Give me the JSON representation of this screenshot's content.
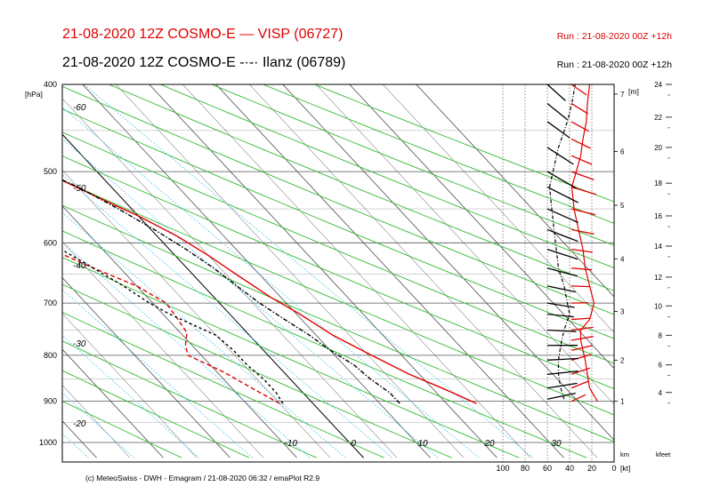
{
  "header": {
    "line1_left": "21-08-2020 12Z COSMO-E  —  VISP (06727)",
    "line1_right": "Run : 21-08-2020 00Z +12h",
    "line2_left": "21-08-2020 12Z COSMO-E  -·-·  Ilanz (06789)",
    "line2_right": "Run : 21-08-2020 00Z +12h"
  },
  "footer": {
    "credit": "(c) MeteoSwiss - DWH - Emagram / 21-08-2020  06:32 / emaPlot R2.9"
  },
  "colors": {
    "visp": "#e00000",
    "ilanz": "#000000",
    "dry_adiabat": "#33bb33",
    "mixing_ratio": "#55ccee",
    "isotherm": "#000000"
  },
  "chart_data": {
    "type": "line",
    "subtype": "emagram",
    "pressure_axis": {
      "unit_label": "[hPa]",
      "ticks": [
        400,
        500,
        600,
        700,
        800,
        900,
        1000
      ],
      "range": [
        400,
        1040
      ],
      "scale": "log"
    },
    "temperature_axis": {
      "unit": "°C",
      "range_at_bottom": [
        -43,
        38
      ],
      "skew": true
    },
    "isotherm_labels_top": [
      "-60",
      "-50",
      "-40",
      "-30",
      "-20"
    ],
    "isotherm_labels_left": [
      "-60",
      "-50",
      "-40",
      "-30",
      "-20"
    ],
    "isotherm_labels_bottom": [
      "-10",
      "0",
      "10",
      "20",
      "30"
    ],
    "wind_axis": {
      "unit_label": "[kt]",
      "ticks": [
        "100",
        "80",
        "60",
        "40",
        "20",
        "0"
      ]
    },
    "height_km": {
      "label": "[m]",
      "heading": "km",
      "ticks": [
        "1",
        "2",
        "3",
        "4",
        "5",
        "6",
        "7"
      ],
      "pressures": [
        900,
        810,
        715,
        625,
        545,
        475,
        410
      ]
    },
    "height_kfeet": {
      "heading": "kfeet",
      "ticks": [
        "4",
        "6",
        "8",
        "10",
        "12",
        "14",
        "16",
        "18",
        "20",
        "22",
        "24"
      ],
      "pressures": [
        880,
        820,
        760,
        705,
        655,
        605,
        560,
        515,
        470,
        435,
        400
      ]
    },
    "series": [
      {
        "name": "VISP (06727)",
        "color": "#e00000",
        "style": "solid",
        "temperature": [
          [
            905,
            24.5
          ],
          [
            870,
            21.5
          ],
          [
            840,
            18.5
          ],
          [
            800,
            15.5
          ],
          [
            760,
            12.5
          ],
          [
            720,
            10.5
          ],
          [
            690,
            8.5
          ],
          [
            650,
            6.5
          ],
          [
            620,
            5
          ],
          [
            590,
            3
          ],
          [
            560,
            0
          ],
          [
            530,
            -4
          ],
          [
            500,
            -8
          ],
          [
            470,
            -12
          ],
          [
            445,
            -15.5
          ],
          [
            420,
            -19
          ],
          [
            400,
            -22
          ]
        ],
        "dewpoint": [
          [
            905,
            -5
          ],
          [
            870,
            -7
          ],
          [
            835,
            -9
          ],
          [
            800,
            -12
          ],
          [
            780,
            -11
          ],
          [
            755,
            -9
          ],
          [
            730,
            -8.5
          ],
          [
            700,
            -8
          ],
          [
            670,
            -10
          ],
          [
            640,
            -14
          ],
          [
            600,
            -19
          ],
          [
            560,
            -24
          ],
          [
            520,
            -29
          ],
          [
            500,
            -31
          ],
          [
            470,
            -35
          ],
          [
            445,
            -36
          ],
          [
            425,
            -37
          ],
          [
            400,
            -39
          ]
        ],
        "wind_speed_kt": [
          [
            900,
            15
          ],
          [
            870,
            22
          ],
          [
            840,
            24
          ],
          [
            810,
            26
          ],
          [
            790,
            28
          ],
          [
            770,
            30
          ],
          [
            750,
            30
          ],
          [
            730,
            22
          ],
          [
            700,
            18
          ],
          [
            670,
            22
          ],
          [
            640,
            26
          ],
          [
            610,
            28
          ],
          [
            580,
            32
          ],
          [
            550,
            36
          ],
          [
            520,
            38
          ],
          [
            500,
            34
          ],
          [
            480,
            30
          ],
          [
            460,
            28
          ],
          [
            440,
            25
          ],
          [
            420,
            24
          ],
          [
            400,
            22
          ]
        ]
      },
      {
        "name": "Ilanz (06789)",
        "color": "#000000",
        "style": "dash-dot",
        "temperature": [
          [
            905,
            13
          ],
          [
            880,
            13
          ],
          [
            850,
            12
          ],
          [
            820,
            11.5
          ],
          [
            790,
            10
          ],
          [
            760,
            9
          ],
          [
            730,
            7.5
          ],
          [
            700,
            6
          ],
          [
            670,
            5
          ],
          [
            640,
            4
          ],
          [
            610,
            2.5
          ],
          [
            580,
            0.5
          ],
          [
            550,
            -2
          ],
          [
            520,
            -5
          ],
          [
            500,
            -8
          ],
          [
            480,
            -10
          ],
          [
            460,
            -12.5
          ],
          [
            440,
            -15
          ],
          [
            420,
            -18
          ],
          [
            400,
            -21
          ]
        ],
        "dewpoint": [
          [
            905,
            -4.5
          ],
          [
            880,
            -4
          ],
          [
            850,
            -4
          ],
          [
            820,
            -4.5
          ],
          [
            790,
            -4.5
          ],
          [
            760,
            -5
          ],
          [
            740,
            -7
          ],
          [
            720,
            -9
          ],
          [
            700,
            -10.5
          ],
          [
            670,
            -12
          ],
          [
            640,
            -14
          ],
          [
            600,
            -17
          ],
          [
            560,
            -21
          ],
          [
            530,
            -24
          ],
          [
            500,
            -27
          ],
          [
            470,
            -29
          ],
          [
            445,
            -30
          ],
          [
            425,
            -31
          ],
          [
            400,
            -34
          ]
        ],
        "wind_speed_kt": [
          [
            895,
            45
          ],
          [
            870,
            48
          ],
          [
            840,
            50
          ],
          [
            810,
            50
          ],
          [
            780,
            48
          ],
          [
            750,
            45
          ],
          [
            720,
            40
          ],
          [
            700,
            42
          ],
          [
            670,
            45
          ],
          [
            640,
            50
          ],
          [
            610,
            52
          ],
          [
            580,
            54
          ],
          [
            550,
            56
          ],
          [
            520,
            58
          ],
          [
            500,
            55
          ],
          [
            470,
            50
          ],
          [
            440,
            42
          ],
          [
            420,
            38
          ],
          [
            400,
            35
          ]
        ]
      }
    ]
  }
}
